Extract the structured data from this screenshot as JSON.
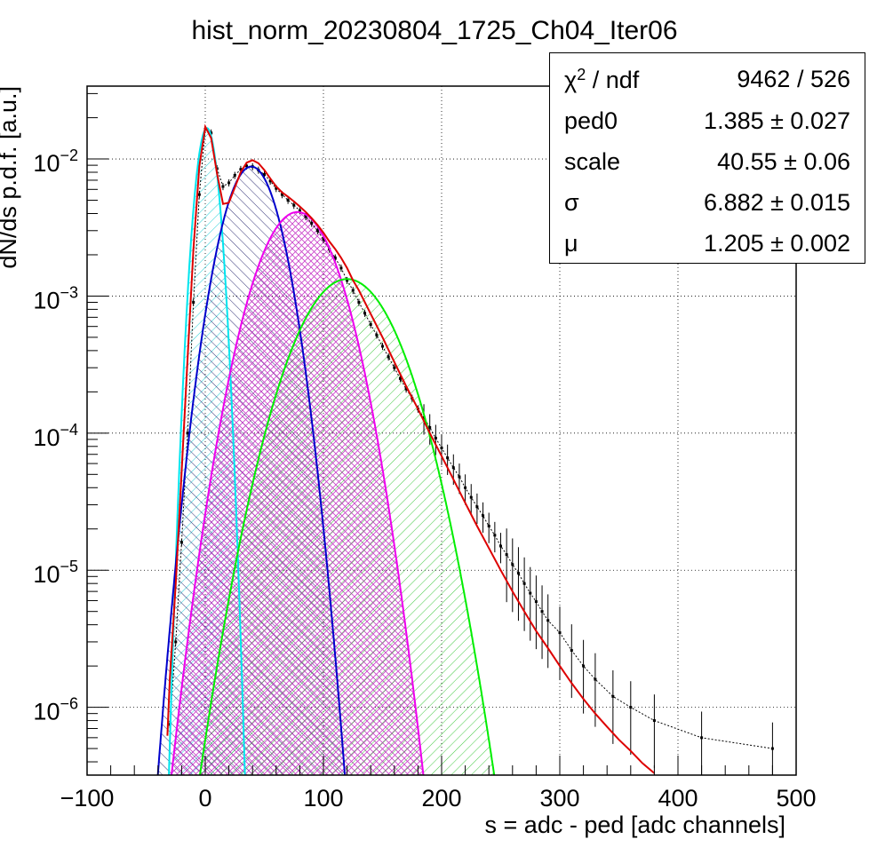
{
  "chart_data": {
    "type": "histogram-fit",
    "title": "hist_norm_20230804_1725_Ch04_Iter06",
    "xlabel": "s = adc - ped [adc channels]",
    "ylabel": "dN/ds p.d.f. [a.u.]",
    "x_range": [
      -100,
      500
    ],
    "y_range": [
      3.2e-07,
      0.034
    ],
    "y_scale": "log",
    "grid": true,
    "x_ticks": [
      {
        "value": -100,
        "label": "−100"
      },
      {
        "value": 0,
        "label": "0"
      },
      {
        "value": 100,
        "label": "100"
      },
      {
        "value": 200,
        "label": "200"
      },
      {
        "value": 300,
        "label": "300"
      },
      {
        "value": 400,
        "label": "400"
      },
      {
        "value": 500,
        "label": "500"
      }
    ],
    "y_ticks": [
      {
        "value": 0.01,
        "base": "10",
        "exp": "−2"
      },
      {
        "value": 0.001,
        "base": "10",
        "exp": "−3"
      },
      {
        "value": 0.0001,
        "base": "10",
        "exp": "−4"
      },
      {
        "value": 1e-05,
        "base": "10",
        "exp": "−5"
      },
      {
        "value": 1e-06,
        "base": "10",
        "exp": "−6"
      }
    ],
    "fit_params": {
      "ped0": 1.385,
      "scale": 40.55,
      "sigma": 6.882,
      "mu": 1.205
    },
    "series": [
      {
        "role": "pedestal",
        "color": "#00e5ee",
        "mean": 1.4,
        "sigma": 6.9,
        "peak": 0.0168,
        "hatch": "diag-right"
      },
      {
        "role": "1pe",
        "color": "#0000cc",
        "mean": 39,
        "sigma": 17.5,
        "peak": 0.0088,
        "hatch": "diag-left"
      },
      {
        "role": "2pe",
        "color": "#ee00ee",
        "mean": 78,
        "sigma": 24.5,
        "peak": 0.0041,
        "hatch": "cross"
      },
      {
        "role": "3pe",
        "color": "#00ee00",
        "mean": 120,
        "sigma": 30.5,
        "peak": 0.00133,
        "hatch": "diag-right"
      },
      {
        "role": "total-fit",
        "color": "#dd0000"
      },
      {
        "role": "data",
        "color": "#000000"
      }
    ],
    "data_points": [
      [
        -30,
        7.5e-07
      ],
      [
        -25,
        3e-06
      ],
      [
        -20,
        1.6e-05
      ],
      [
        -15,
        0.0001
      ],
      [
        -10,
        0.0009
      ],
      [
        -5,
        0.0055
      ],
      [
        0,
        0.0165
      ],
      [
        5,
        0.0155
      ],
      [
        10,
        0.0085
      ],
      [
        15,
        0.0063
      ],
      [
        20,
        0.0067
      ],
      [
        25,
        0.0076
      ],
      [
        30,
        0.0084
      ],
      [
        35,
        0.0089
      ],
      [
        40,
        0.0088
      ],
      [
        45,
        0.0083
      ],
      [
        50,
        0.0077
      ],
      [
        55,
        0.0069
      ],
      [
        60,
        0.0061
      ],
      [
        65,
        0.0055
      ],
      [
        70,
        0.005
      ],
      [
        75,
        0.0046
      ],
      [
        80,
        0.0042
      ],
      [
        85,
        0.0038
      ],
      [
        90,
        0.0034
      ],
      [
        95,
        0.003
      ],
      [
        100,
        0.0026
      ],
      [
        105,
        0.0022
      ],
      [
        110,
        0.0019
      ],
      [
        115,
        0.0016
      ],
      [
        120,
        0.0013
      ],
      [
        125,
        0.0011
      ],
      [
        130,
        0.0009
      ],
      [
        135,
        0.00075
      ],
      [
        140,
        0.00062
      ],
      [
        145,
        0.00052
      ],
      [
        150,
        0.00043
      ],
      [
        155,
        0.00036
      ],
      [
        160,
        0.0003
      ],
      [
        165,
        0.00025
      ],
      [
        170,
        0.00021
      ],
      [
        175,
        0.00018
      ],
      [
        180,
        0.00015
      ],
      [
        185,
        0.00013
      ],
      [
        190,
        0.00011
      ],
      [
        195,
        9.2e-05
      ],
      [
        200,
        7.8e-05
      ],
      [
        205,
        6.6e-05
      ],
      [
        210,
        5.6e-05
      ],
      [
        215,
        4.8e-05
      ],
      [
        220,
        4e-05
      ],
      [
        225,
        3.4e-05
      ],
      [
        230,
        2.9e-05
      ],
      [
        235,
        2.5e-05
      ],
      [
        240,
        2.1e-05
      ],
      [
        245,
        1.8e-05
      ],
      [
        250,
        1.5e-05
      ],
      [
        255,
        1.3e-05
      ],
      [
        260,
        1.1e-05
      ],
      [
        265,
        9.5e-06
      ],
      [
        270,
        8e-06
      ],
      [
        275,
        6.8e-06
      ],
      [
        280,
        5.9e-06
      ],
      [
        285,
        5e-06
      ],
      [
        290,
        4.3e-06
      ],
      [
        300,
        3.5e-06
      ],
      [
        310,
        2.6e-06
      ],
      [
        320,
        2e-06
      ],
      [
        330,
        1.6e-06
      ],
      [
        345,
        1.2e-06
      ],
      [
        360,
        1e-06
      ],
      [
        380,
        8e-07
      ],
      [
        420,
        6e-07
      ],
      [
        480,
        5e-07
      ]
    ],
    "fit_curve": [
      [
        -32,
        6.2e-07
      ],
      [
        -30,
        1.6e-06
      ],
      [
        -25,
        8e-06
      ],
      [
        -20,
        5.2e-05
      ],
      [
        -15,
        0.00035
      ],
      [
        -10,
        0.0022
      ],
      [
        -5,
        0.0088
      ],
      [
        0,
        0.0172
      ],
      [
        5,
        0.0142
      ],
      [
        10,
        0.0078
      ],
      [
        15,
        0.0047
      ],
      [
        20,
        0.0048
      ],
      [
        25,
        0.0062
      ],
      [
        30,
        0.008
      ],
      [
        35,
        0.0094
      ],
      [
        40,
        0.0098
      ],
      [
        45,
        0.0093
      ],
      [
        50,
        0.0083
      ],
      [
        55,
        0.0072
      ],
      [
        60,
        0.0063
      ],
      [
        65,
        0.0057
      ],
      [
        70,
        0.0053
      ],
      [
        75,
        0.0049
      ],
      [
        80,
        0.0045
      ],
      [
        85,
        0.0041
      ],
      [
        90,
        0.0037
      ],
      [
        95,
        0.0033
      ],
      [
        100,
        0.0029
      ],
      [
        105,
        0.0025
      ],
      [
        110,
        0.0022
      ],
      [
        115,
        0.0019
      ],
      [
        120,
        0.0016
      ],
      [
        125,
        0.0013
      ],
      [
        130,
        0.0011
      ],
      [
        140,
        0.00074
      ],
      [
        150,
        0.0005
      ],
      [
        160,
        0.00033
      ],
      [
        170,
        0.00022
      ],
      [
        180,
        0.00015
      ],
      [
        190,
        0.0001
      ],
      [
        200,
        6.8e-05
      ],
      [
        210,
        4.6e-05
      ],
      [
        220,
        3.1e-05
      ],
      [
        230,
        2.1e-05
      ],
      [
        240,
        1.45e-05
      ],
      [
        250,
        1e-05
      ],
      [
        260,
        7e-06
      ],
      [
        270,
        5e-06
      ],
      [
        280,
        3.6e-06
      ],
      [
        290,
        2.7e-06
      ],
      [
        300,
        2e-06
      ],
      [
        310,
        1.5e-06
      ],
      [
        320,
        1.15e-06
      ],
      [
        330,
        9e-07
      ],
      [
        340,
        7.2e-07
      ],
      [
        350,
        5.8e-07
      ],
      [
        360,
        4.8e-07
      ],
      [
        370,
        3.9e-07
      ],
      [
        380,
        3.3e-07
      ]
    ]
  },
  "stats": {
    "rows": [
      {
        "name": "χ",
        "sup": "2",
        "suffix": " / ndf",
        "value": "9462 / 526"
      },
      {
        "name": "ped0",
        "value": "1.385 ± 0.027"
      },
      {
        "name": "scale",
        "value": "40.55 ± 0.06"
      },
      {
        "name": "σ",
        "value": "6.882 ± 0.015"
      },
      {
        "name": "μ",
        "value": "1.205 ± 0.002"
      }
    ]
  }
}
